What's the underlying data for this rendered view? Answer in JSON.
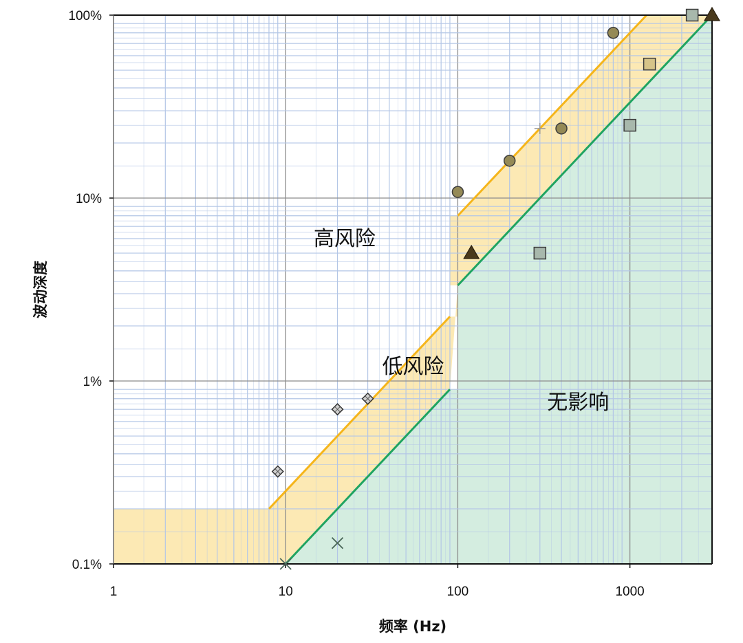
{
  "chart_data": {
    "type": "scatter",
    "title": "",
    "xlabel": "频率 (Hz)",
    "ylabel": "波动深度",
    "x_scale": "log",
    "y_scale": "log",
    "xlim": [
      1,
      3000
    ],
    "ylim": [
      0.1,
      100
    ],
    "x_ticks": [
      {
        "value": 1,
        "label": "1"
      },
      {
        "value": 10,
        "label": "10"
      },
      {
        "value": 100,
        "label": "100"
      },
      {
        "value": 1000,
        "label": "1000"
      }
    ],
    "y_ticks": [
      {
        "value": 0.1,
        "label": "0.1%"
      },
      {
        "value": 1,
        "label": "1%"
      },
      {
        "value": 10,
        "label": "10%"
      },
      {
        "value": 100,
        "label": "100%"
      }
    ],
    "grid": true,
    "colors": {
      "low_risk_fill": "#fce9b4",
      "no_effect_fill": "#d4ede0",
      "boundary_high": "#f5b51b",
      "boundary_low": "#1fa461",
      "minor_grid": "#b3c6e6",
      "major_grid": "#8c8c8c"
    },
    "regions": [
      {
        "label": "高风险",
        "label_at": [
          22,
          5.5
        ]
      },
      {
        "label": "低风险",
        "label_at": [
          55,
          1.1
        ]
      },
      {
        "label": "无影响",
        "label_at": [
          500,
          0.7
        ]
      }
    ],
    "boundaries": [
      {
        "name": "",
        "role": "high",
        "segments": [
          [
            [
              8,
              0.2
            ],
            [
              90,
              2.25
            ]
          ],
          [
            [
              100,
              8
            ],
            [
              1250,
              100
            ]
          ]
        ]
      },
      {
        "name": "",
        "role": "low",
        "segments": [
          [
            [
              10,
              0.1
            ],
            [
              90,
              0.9
            ]
          ],
          [
            [
              100,
              3.33
            ],
            [
              3000,
              100
            ]
          ]
        ]
      }
    ],
    "series": [
      {
        "marker": "diamond",
        "color": "#9a9a9a",
        "points": [
          [
            9,
            0.32
          ],
          [
            20,
            0.7
          ],
          [
            30,
            0.8
          ]
        ]
      },
      {
        "marker": "x",
        "color": "#4d6a5c",
        "points": [
          [
            10,
            0.1
          ],
          [
            20,
            0.13
          ]
        ]
      },
      {
        "marker": "circle",
        "color": "#958a56",
        "points": [
          [
            100,
            10.8
          ],
          [
            200,
            16
          ],
          [
            400,
            24
          ],
          [
            800,
            80
          ]
        ]
      },
      {
        "marker": "triangle",
        "color": "#4a3a1c",
        "points": [
          [
            120,
            5
          ],
          [
            3000,
            100
          ]
        ]
      },
      {
        "marker": "square",
        "color": "#a8b8ac",
        "points": [
          [
            300,
            5
          ],
          [
            1000,
            25
          ],
          [
            2300,
            100
          ]
        ]
      },
      {
        "marker": "square",
        "color": "#d6c489",
        "points": [
          [
            1300,
            54
          ]
        ]
      },
      {
        "marker": "plus",
        "color": "#9a9a9a",
        "points": [
          [
            300,
            24
          ]
        ]
      }
    ]
  }
}
